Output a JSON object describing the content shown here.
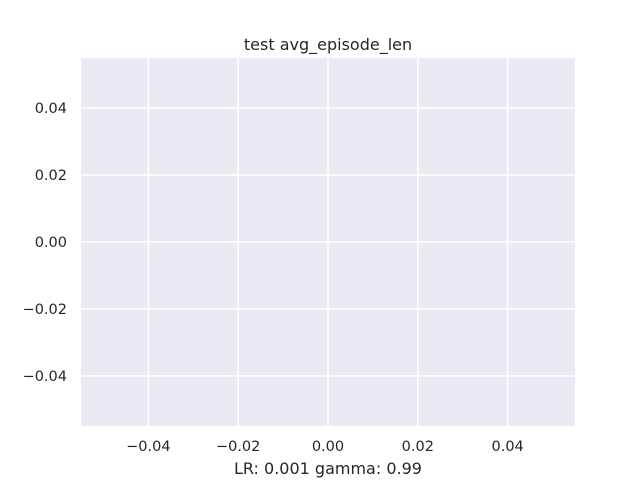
{
  "chart_data": {
    "type": "line",
    "title": "test avg_episode_len",
    "xlabel": "LR: 0.001 gamma: 0.99",
    "ylabel": "",
    "series": [],
    "xlim": [
      -0.055,
      0.055
    ],
    "ylim": [
      -0.055,
      0.055
    ],
    "xticks": [
      {
        "value": -0.04,
        "label": "−0.04"
      },
      {
        "value": -0.02,
        "label": "−0.02"
      },
      {
        "value": 0.0,
        "label": "0.00"
      },
      {
        "value": 0.02,
        "label": "0.02"
      },
      {
        "value": 0.04,
        "label": "0.04"
      }
    ],
    "yticks": [
      {
        "value": 0.04,
        "label": "0.04"
      },
      {
        "value": 0.02,
        "label": "0.02"
      },
      {
        "value": 0.0,
        "label": "0.00"
      },
      {
        "value": -0.02,
        "label": "−0.02"
      },
      {
        "value": -0.04,
        "label": "−0.04"
      }
    ],
    "grid": true,
    "colors": {
      "plot_background": "#eaeaf2",
      "grid": "#ffffff",
      "text": "#262626"
    }
  }
}
